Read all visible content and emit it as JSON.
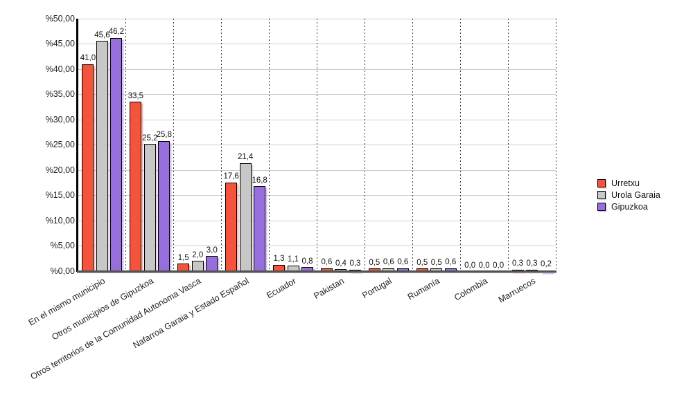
{
  "chart_data": {
    "type": "bar",
    "title": "",
    "xlabel": "",
    "ylabel": "",
    "ylim": [
      0,
      50
    ],
    "y_step": 5,
    "grid": true,
    "legend_position": "right",
    "y_ticks": [
      "%50,00",
      "%45,00",
      "%40,00",
      "%35,00",
      "%30,00",
      "%25,00",
      "%20,00",
      "%15,00",
      "%10,00",
      "%5,00",
      "%0,00"
    ],
    "categories": [
      "En el mismo municipio",
      "Otros municipios de Gipuzkoa",
      "Otros territorios de la Comunidad Autonoma Vasca",
      "Nafarroa Garaia y Estado Español",
      "Ecuador",
      "Pakistan",
      "Portugal",
      "Rumanía",
      "Colombia",
      "Marruecos"
    ],
    "series": [
      {
        "name": "Urretxu",
        "color": "#f4533c",
        "shadow_color": "rgba(246,100,80,0.45)",
        "values": [
          41.0,
          33.5,
          1.5,
          17.6,
          1.3,
          0.6,
          0.5,
          0.5,
          0.0,
          0.3
        ],
        "value_labels": [
          "41,0",
          "33,5",
          "1,5",
          "17,6",
          "1,3",
          "0,6",
          "0,5",
          "0,5",
          "0,0",
          "0,3"
        ]
      },
      {
        "name": "Urola Garaia",
        "color": "#c7c7c7",
        "shadow_color": "rgba(170,170,170,0.40)",
        "values": [
          45.6,
          25.2,
          2.0,
          21.4,
          1.1,
          0.4,
          0.6,
          0.5,
          0.0,
          0.3
        ],
        "value_labels": [
          "45,6",
          "25,2",
          "2,0",
          "21,4",
          "1,1",
          "0,4",
          "0,6",
          "0,5",
          "0,0",
          "0,3"
        ]
      },
      {
        "name": "Gipuzkoa",
        "color": "#976fdc",
        "shadow_color": "rgba(160,120,230,0.45)",
        "values": [
          46.2,
          25.8,
          3.0,
          16.8,
          0.8,
          0.3,
          0.6,
          0.6,
          0.0,
          0.2
        ],
        "value_labels": [
          "46,2",
          "25,8",
          "3,0",
          "16,8",
          "0,8",
          "0,3",
          "0,6",
          "0,6",
          "0,0",
          "0,2"
        ]
      }
    ]
  }
}
